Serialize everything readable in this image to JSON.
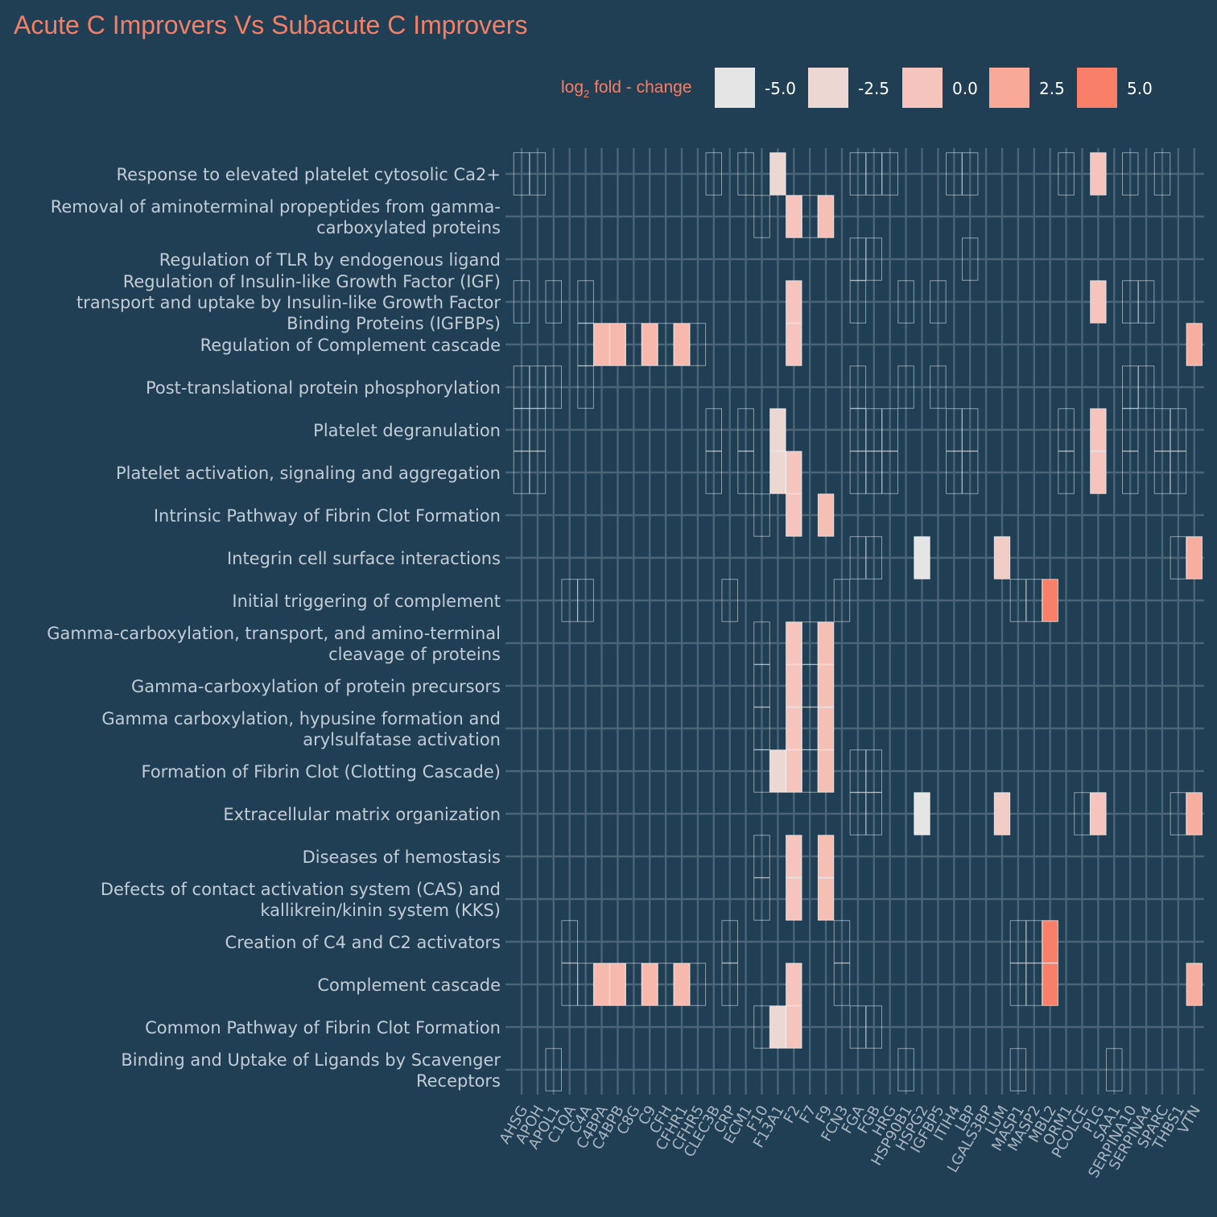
{
  "chart_data": {
    "type": "heatmap",
    "title": "Acute C Improvers Vs Subacute C Improvers",
    "legend": {
      "title": "log2 fold - change",
      "title_main": "log",
      "title_sub": "2",
      "title_rest": " fold - change",
      "breaks": [
        "-5.0",
        "-2.5",
        "0.0",
        "2.5",
        "5.0"
      ],
      "break_values": [
        -5,
        -2.5,
        0,
        2.5,
        5
      ],
      "colors": [
        "#e5e5e5",
        "#edd7d3",
        "#f5c4bd",
        "#f9a997",
        "#fa7f68"
      ],
      "placement": "top"
    },
    "colors": {
      "background": "#203f55",
      "accent": "#f47f67",
      "grid": "#4b6476"
    },
    "x_labels": [
      "AHSG",
      "APOH",
      "APOL1",
      "C1QA",
      "C4A",
      "C4BPA",
      "C4BPB",
      "C8G",
      "C9",
      "CFH",
      "CFHR1",
      "CFHR5",
      "CLEC3B",
      "CRP",
      "ECM1",
      "F10",
      "F13A1",
      "F2",
      "F7",
      "F9",
      "FCN3",
      "FGA",
      "FGB",
      "HRG",
      "HSP90B1",
      "HSPG2",
      "IGFBP5",
      "ITIH4",
      "LBP",
      "LGALS3BP",
      "LUM",
      "MASP1",
      "MASP2",
      "MBL2",
      "ORM1",
      "PCOLCE",
      "PLG",
      "SAA1",
      "SERPINA10",
      "SERPINA4",
      "SPARC",
      "THBS1",
      "VTN"
    ],
    "y_labels": [
      [
        "Response to elevated platelet cytosolic Ca2+"
      ],
      [
        "Removal of aminoterminal propeptides from gamma-",
        "carboxylated proteins"
      ],
      [
        "Regulation of TLR by endogenous ligand"
      ],
      [
        "Regulation of Insulin-like Growth Factor (IGF)",
        "transport and uptake by Insulin-like Growth Factor",
        "Binding Proteins (IGFBPs)"
      ],
      [
        "Regulation of Complement cascade"
      ],
      [
        "Post-translational protein phosphorylation"
      ],
      [
        "Platelet degranulation"
      ],
      [
        "Platelet activation, signaling and aggregation"
      ],
      [
        "Intrinsic Pathway of Fibrin Clot Formation"
      ],
      [
        "Integrin cell surface interactions"
      ],
      [
        "Initial triggering of complement"
      ],
      [
        "Gamma-carboxylation, transport, and amino-terminal",
        "cleavage of proteins"
      ],
      [
        "Gamma-carboxylation of protein precursors"
      ],
      [
        "Gamma carboxylation, hypusine formation and",
        "arylsulfatase activation"
      ],
      [
        "Formation of Fibrin Clot (Clotting Cascade)"
      ],
      [
        "Extracellular matrix organization"
      ],
      [
        "Diseases of hemostasis"
      ],
      [
        "Defects of contact activation system (CAS) and",
        "kallikrein/kinin system (KKS)"
      ],
      [
        "Creation of C4 and C2 activators"
      ],
      [
        "Complement cascade"
      ],
      [
        "Common Pathway of Fibrin Clot Formation"
      ],
      [
        "Binding and Uptake of Ligands by Scavenger",
        "Receptors"
      ]
    ],
    "fold_change": {
      "F13A1": -2.5,
      "PLG": 0,
      "F2": 0,
      "F9": 0.5,
      "C4BPA": 1,
      "C4BPB": 1,
      "C9": 1,
      "CFHR1": 1,
      "VTN": 2,
      "HSPG2": -5,
      "LUM": -1,
      "MBL2": 5
    },
    "cells": [
      [
        "AHSG",
        "APOH",
        "CLEC3B",
        "ECM1",
        "F13A1",
        "FGA",
        "FGB",
        "HRG",
        "ITIH4",
        "LBP",
        "ORM1",
        "PLG",
        "SERPINA10",
        "SPARC"
      ],
      [
        "F10",
        "F2",
        "F7",
        "F9"
      ],
      [
        "FGA",
        "FGB",
        "LBP"
      ],
      [
        "AHSG",
        "APOL1",
        "C4A",
        "F2",
        "FGA",
        "HSP90B1",
        "IGFBP5",
        "PLG",
        "SERPINA10",
        "SERPINA4"
      ],
      [
        "C4A",
        "C4BPA",
        "C4BPB",
        "C8G",
        "C9",
        "CFH",
        "CFHR1",
        "CFHR5",
        "F2",
        "VTN"
      ],
      [
        "AHSG",
        "APOH",
        "APOL1",
        "C4A",
        "FGA",
        "HSP90B1",
        "IGFBP5",
        "SERPINA10",
        "SERPINA4"
      ],
      [
        "AHSG",
        "APOH",
        "CLEC3B",
        "ECM1",
        "F13A1",
        "FGA",
        "FGB",
        "HRG",
        "ITIH4",
        "LBP",
        "ORM1",
        "PLG",
        "SERPINA10",
        "SPARC",
        "THBS1"
      ],
      [
        "AHSG",
        "APOH",
        "CLEC3B",
        "ECM1",
        "F13A1",
        "F2",
        "FGA",
        "FGB",
        "HRG",
        "ITIH4",
        "LBP",
        "ORM1",
        "PLG",
        "SERPINA10",
        "SPARC",
        "THBS1"
      ],
      [
        "F10",
        "F2",
        "F9"
      ],
      [
        "FGA",
        "FGB",
        "HSPG2",
        "LUM",
        "THBS1",
        "VTN"
      ],
      [
        "C1QA",
        "C4A",
        "CRP",
        "FCN3",
        "MASP1",
        "MASP2",
        "MBL2"
      ],
      [
        "F10",
        "F2",
        "F7",
        "F9"
      ],
      [
        "F10",
        "F2",
        "F7",
        "F9"
      ],
      [
        "F10",
        "F2",
        "F7",
        "F9"
      ],
      [
        "F10",
        "F13A1",
        "F2",
        "F7",
        "F9",
        "FGA",
        "FGB"
      ],
      [
        "FGA",
        "FGB",
        "HSPG2",
        "LUM",
        "PCOLCE",
        "PLG",
        "THBS1",
        "VTN"
      ],
      [
        "F10",
        "F2",
        "F9"
      ],
      [
        "F10",
        "F2",
        "F9"
      ],
      [
        "C1QA",
        "CRP",
        "FCN3",
        "MASP1",
        "MASP2",
        "MBL2"
      ],
      [
        "C1QA",
        "C4A",
        "C4BPA",
        "C4BPB",
        "C8G",
        "C9",
        "CFH",
        "CFHR1",
        "CFHR5",
        "CRP",
        "F2",
        "FCN3",
        "MASP1",
        "MASP2",
        "MBL2",
        "VTN"
      ],
      [
        "F10",
        "F13A1",
        "F2",
        "FGA",
        "FGB"
      ],
      [
        "APOL1",
        "HSP90B1",
        "MASP1",
        "SAA1"
      ]
    ]
  }
}
